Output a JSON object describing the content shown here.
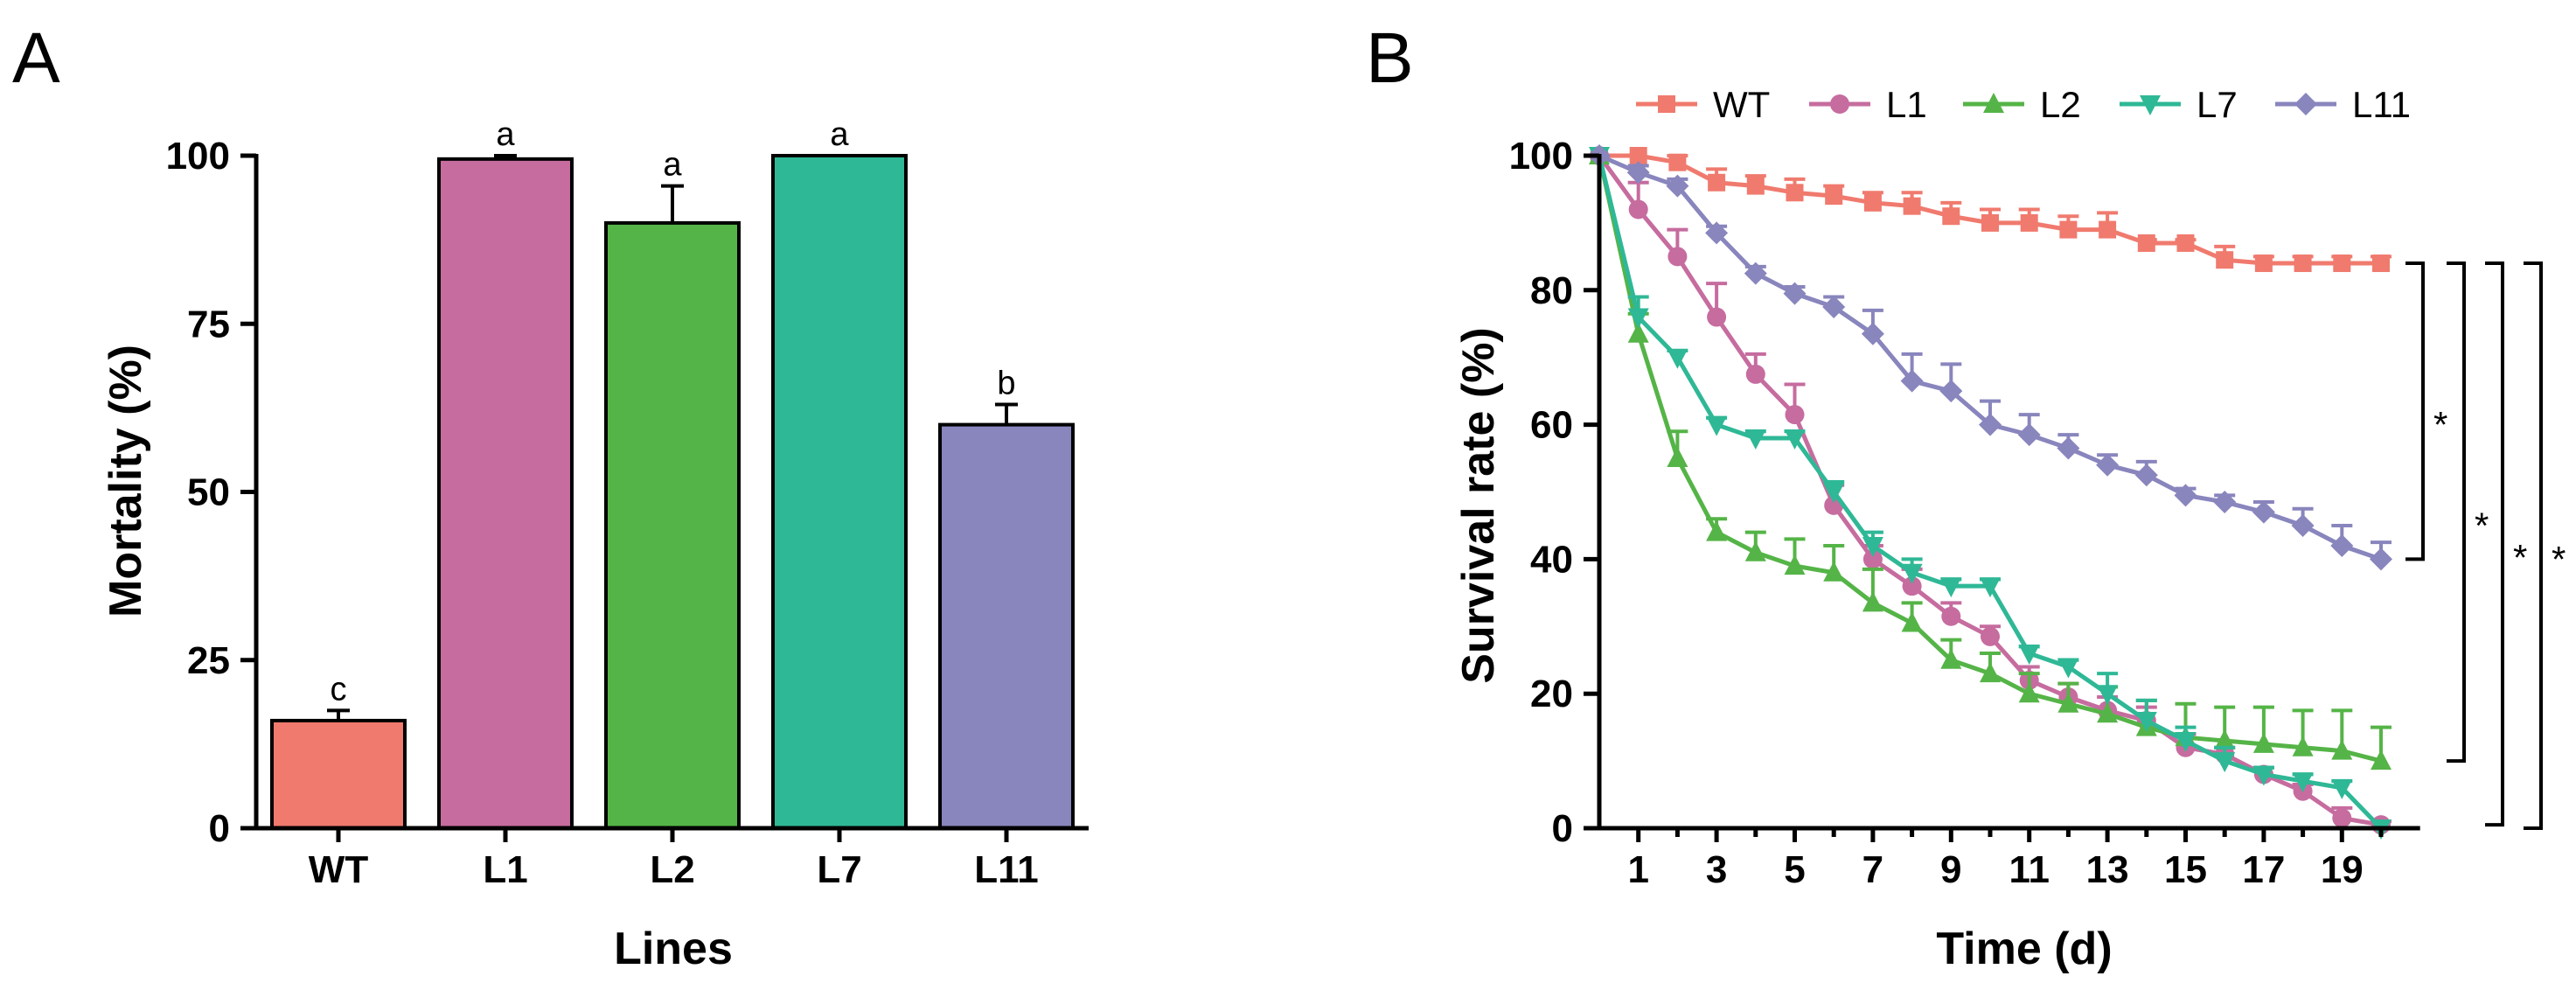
{
  "chart_data": [
    {
      "type": "bar",
      "panel_label": "A",
      "title": "",
      "xlabel": "Lines",
      "ylabel": "Mortality (%)",
      "categories": [
        "WT",
        "L1",
        "L2",
        "L7",
        "L11"
      ],
      "values": [
        16,
        99.5,
        90,
        100,
        60
      ],
      "errors": [
        1.5,
        0.5,
        5.5,
        0,
        3
      ],
      "significance": [
        "c",
        "a",
        "a",
        "a",
        "b"
      ],
      "colors": [
        "#F07A6E",
        "#C66C9F",
        "#55B447",
        "#2FB896",
        "#8985BD"
      ],
      "ylim": [
        0,
        100
      ],
      "yticks": [
        0,
        25,
        50,
        75,
        100
      ]
    },
    {
      "type": "line",
      "panel_label": "B",
      "title": "",
      "xlabel": "Time (d)",
      "ylabel": "Survival rate (%)",
      "x": [
        0,
        1,
        2,
        3,
        4,
        5,
        6,
        7,
        8,
        9,
        10,
        11,
        12,
        13,
        14,
        15,
        16,
        17,
        18,
        19,
        20
      ],
      "xticks": [
        1,
        3,
        5,
        7,
        9,
        11,
        13,
        15,
        17,
        19
      ],
      "xlim": [
        0,
        21
      ],
      "ylim": [
        0,
        100
      ],
      "yticks": [
        0,
        20,
        40,
        60,
        80,
        100
      ],
      "legend_position": "top",
      "series": [
        {
          "name": "WT",
          "color": "#F07A6E",
          "marker": "square",
          "values": [
            100,
            100,
            99,
            96,
            95.5,
            94.5,
            94,
            93,
            92.5,
            91,
            90,
            90,
            89,
            89,
            87,
            87,
            84.5,
            84,
            84,
            84,
            84
          ],
          "errors": [
            0,
            0,
            1,
            2,
            1.5,
            2,
            1.5,
            1.5,
            2,
            2,
            2,
            2,
            2,
            2.5,
            0.5,
            0.5,
            2,
            1,
            1,
            1,
            1
          ]
        },
        {
          "name": "L1",
          "color": "#C66C9F",
          "marker": "circle",
          "values": [
            100,
            92,
            85,
            76,
            67.5,
            61.5,
            48,
            40,
            36,
            31.5,
            28.5,
            22,
            19.5,
            17.5,
            16,
            12,
            11,
            8,
            5.5,
            1.5,
            0.5
          ],
          "errors": [
            0,
            4,
            4,
            5,
            3,
            4.5,
            3,
            2,
            2.5,
            2,
            1.5,
            2,
            2,
            2,
            2,
            2,
            1,
            1,
            1,
            1.5,
            0.5
          ]
        },
        {
          "name": "L2",
          "color": "#55B447",
          "marker": "triangle-up",
          "values": [
            100,
            73.5,
            55,
            44,
            41,
            39,
            38,
            33.5,
            30.5,
            25,
            23,
            20,
            18.5,
            17,
            15,
            13.5,
            13,
            12.5,
            12,
            11.5,
            10
          ],
          "errors": [
            0,
            3,
            4,
            2,
            3,
            4,
            4,
            5,
            3,
            3,
            3,
            3,
            3,
            4,
            4,
            5,
            5,
            5.5,
            5.5,
            6,
            5
          ]
        },
        {
          "name": "L7",
          "color": "#2FB896",
          "marker": "triangle-down",
          "values": [
            100,
            76,
            70,
            60,
            58,
            58,
            50,
            42,
            38,
            36,
            36,
            26,
            24,
            20,
            16,
            13,
            10,
            8,
            7,
            6,
            0
          ],
          "errors": [
            0,
            3,
            1,
            1,
            1,
            1,
            1.5,
            2,
            2,
            1,
            1,
            1,
            1,
            3,
            3,
            2,
            2,
            1,
            1,
            1,
            0
          ]
        },
        {
          "name": "L11",
          "color": "#8985BD",
          "marker": "diamond",
          "values": [
            100,
            97.5,
            95.5,
            88.5,
            82.5,
            79.5,
            77.5,
            73.5,
            66.5,
            65,
            60,
            58.5,
            56.5,
            54,
            52.5,
            49.5,
            48.5,
            47,
            45,
            42,
            40
          ],
          "errors": [
            0,
            1,
            1,
            1,
            1,
            1,
            1.5,
            3.5,
            4,
            4,
            3.5,
            3,
            2,
            1.5,
            2,
            1,
            1,
            1.5,
            2.5,
            3,
            2.5
          ]
        }
      ],
      "significance_brackets": [
        {
          "label": "*",
          "from": "WT",
          "to": "L11"
        },
        {
          "label": "*",
          "from": "WT",
          "to": "L2"
        },
        {
          "label": "*",
          "from": "WT",
          "to": "L1"
        },
        {
          "label": "*",
          "from": "WT",
          "to": "L7"
        }
      ]
    }
  ]
}
